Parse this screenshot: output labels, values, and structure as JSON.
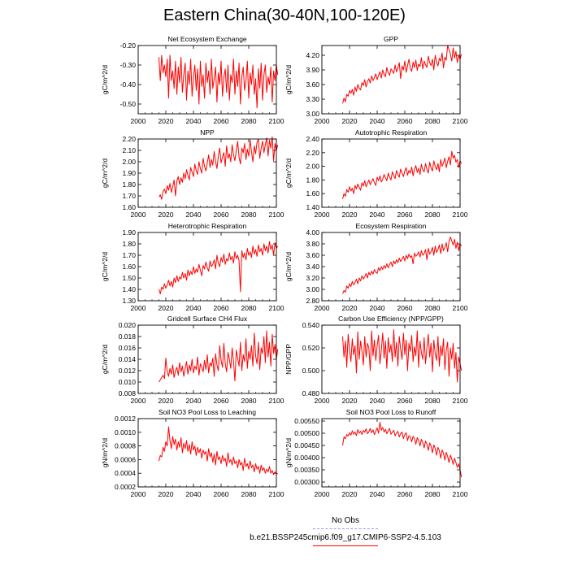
{
  "page_title": "Eastern China(30-40N,100-120E)",
  "colors": {
    "model": "#ff0000",
    "obs": "#9999ff",
    "axis": "#000000"
  },
  "legend": {
    "obs_label": "No Obs",
    "model_label": "b.e21.BSSP245cmip6.f09_g17.CMIP6-SSP2-4.5.103"
  },
  "chart_data": [
    {
      "type": "line",
      "title": "Net Ecosystem Exchange",
      "ylabel": "gC/m^2/d",
      "xlim": [
        2000,
        2100
      ],
      "ylim": [
        -0.55,
        -0.2
      ],
      "xticks": [
        2000,
        2020,
        2040,
        2060,
        2080,
        2100
      ],
      "yticks": [
        -0.2,
        -0.3,
        -0.4,
        -0.5
      ],
      "ytick_labels": [
        "-0.20",
        "-0.30",
        "-0.40",
        "-0.50"
      ],
      "x_start": 2015,
      "values": [
        -0.26,
        -0.38,
        -0.25,
        -0.34,
        -0.3,
        -0.36,
        -0.27,
        -0.47,
        -0.25,
        -0.38,
        -0.33,
        -0.42,
        -0.28,
        -0.45,
        -0.31,
        -0.39,
        -0.26,
        -0.44,
        -0.35,
        -0.29,
        -0.48,
        -0.33,
        -0.4,
        -0.27,
        -0.46,
        -0.36,
        -0.3,
        -0.43,
        -0.32,
        -0.5,
        -0.28,
        -0.41,
        -0.35,
        -0.47,
        -0.29,
        -0.39,
        -0.33,
        -0.45,
        -0.27,
        -0.42,
        -0.37,
        -0.31,
        -0.49,
        -0.34,
        -0.4,
        -0.28,
        -0.46,
        -0.36,
        -0.32,
        -0.44,
        -0.3,
        -0.48,
        -0.35,
        -0.39,
        -0.27,
        -0.45,
        -0.33,
        -0.41,
        -0.29,
        -0.5,
        -0.36,
        -0.31,
        -0.43,
        -0.38,
        -0.28,
        -0.47,
        -0.34,
        -0.4,
        -0.3,
        -0.45,
        -0.37,
        -0.52,
        -0.32,
        -0.42,
        -0.29,
        -0.48,
        -0.35,
        -0.3,
        -0.44,
        -0.36,
        -0.4,
        -0.31,
        -0.49,
        -0.33,
        -0.38,
        -0.3,
        -0.35
      ]
    },
    {
      "type": "line",
      "title": "GPP",
      "ylabel": "gC/m^2/d",
      "xlim": [
        2000,
        2100
      ],
      "ylim": [
        3.0,
        4.4
      ],
      "xticks": [
        2000,
        2020,
        2040,
        2060,
        2080,
        2100
      ],
      "yticks": [
        3.0,
        3.3,
        3.6,
        3.9,
        4.2
      ],
      "ytick_labels": [
        "3.00",
        "3.30",
        "3.60",
        "3.90",
        "4.20"
      ],
      "x_start": 2015,
      "values": [
        3.21,
        3.32,
        3.25,
        3.4,
        3.36,
        3.48,
        3.42,
        3.5,
        3.38,
        3.55,
        3.46,
        3.6,
        3.52,
        3.49,
        3.64,
        3.58,
        3.7,
        3.55,
        3.66,
        3.72,
        3.63,
        3.78,
        3.68,
        3.74,
        3.82,
        3.7,
        3.79,
        3.86,
        3.73,
        3.9,
        3.81,
        3.76,
        3.95,
        3.84,
        3.79,
        3.92,
        3.88,
        3.83,
        4.0,
        3.86,
        3.94,
        4.05,
        3.72,
        3.98,
        3.9,
        4.08,
        3.85,
        3.99,
        4.12,
        3.93,
        3.87,
        4.06,
        3.95,
        4.1,
        3.89,
        4.02,
        3.97,
        4.15,
        3.92,
        4.08,
        4.01,
        3.95,
        4.18,
        4.05,
        3.99,
        4.12,
        3.9,
        4.2,
        4.06,
        3.98,
        4.14,
        4.08,
        4.25,
        3.94,
        4.16,
        4.1,
        4.4,
        4.32,
        4.22,
        4.08,
        4.35,
        4.14,
        4.28,
        4.05,
        4.2,
        4.12,
        4.22
      ]
    },
    {
      "type": "line",
      "title": "NPP",
      "ylabel": "gC/m^2/d",
      "xlim": [
        2000,
        2100
      ],
      "ylim": [
        1.6,
        2.2
      ],
      "xticks": [
        2000,
        2020,
        2040,
        2060,
        2080,
        2100
      ],
      "yticks": [
        1.6,
        1.7,
        1.8,
        1.9,
        2.0,
        2.1,
        2.2
      ],
      "ytick_labels": [
        "1.60",
        "1.70",
        "1.80",
        "1.90",
        "2.00",
        "2.10",
        "2.20"
      ],
      "x_start": 2015,
      "values": [
        1.69,
        1.71,
        1.67,
        1.74,
        1.76,
        1.72,
        1.79,
        1.75,
        1.81,
        1.73,
        1.78,
        1.84,
        1.7,
        1.83,
        1.87,
        1.8,
        1.86,
        1.82,
        1.9,
        1.85,
        1.93,
        1.88,
        1.84,
        1.95,
        1.91,
        1.87,
        1.98,
        1.92,
        1.89,
        2.0,
        1.94,
        1.9,
        2.03,
        1.96,
        1.92,
        1.99,
        2.06,
        1.95,
        2.02,
        1.97,
        2.09,
        2.0,
        1.94,
        2.05,
        2.12,
        1.99,
        2.04,
        2.08,
        1.96,
        2.14,
        2.03,
        2.07,
        2.0,
        2.15,
        2.06,
        2.01,
        2.1,
        2.18,
        2.04,
        1.98,
        2.12,
        2.08,
        2.16,
        2.02,
        2.11,
        2.05,
        2.19,
        2.09,
        2.0,
        2.14,
        2.07,
        2.17,
        2.2,
        2.03,
        2.12,
        2.18,
        2.08,
        2.15,
        2.21,
        2.05,
        2.19,
        2.12,
        2.22,
        2.01,
        2.16,
        2.1,
        2.15
      ]
    },
    {
      "type": "line",
      "title": "Autotrophic Respiration",
      "ylabel": "gC/m^2/d",
      "xlim": [
        2000,
        2100
      ],
      "ylim": [
        1.4,
        2.4
      ],
      "xticks": [
        2000,
        2020,
        2040,
        2060,
        2080,
        2100
      ],
      "yticks": [
        1.4,
        1.6,
        1.8,
        2.0,
        2.2,
        2.4
      ],
      "ytick_labels": [
        "1.40",
        "1.60",
        "1.80",
        "2.00",
        "2.20",
        "2.40"
      ],
      "x_start": 2015,
      "values": [
        1.52,
        1.6,
        1.56,
        1.66,
        1.62,
        1.7,
        1.64,
        1.68,
        1.6,
        1.72,
        1.67,
        1.74,
        1.69,
        1.65,
        1.76,
        1.71,
        1.79,
        1.7,
        1.75,
        1.8,
        1.73,
        1.78,
        1.82,
        1.76,
        1.72,
        1.84,
        1.79,
        1.86,
        1.77,
        1.81,
        1.88,
        1.83,
        1.79,
        1.9,
        1.84,
        1.8,
        1.92,
        1.86,
        1.82,
        1.94,
        1.88,
        1.84,
        1.96,
        1.9,
        1.85,
        1.93,
        1.98,
        1.87,
        1.94,
        1.9,
        1.99,
        1.86,
        1.96,
        2.01,
        1.91,
        1.97,
        1.88,
        2.03,
        1.95,
        1.92,
        2.04,
        1.96,
        1.9,
        2.06,
        1.98,
        1.93,
        2.08,
        2.0,
        1.95,
        2.04,
        1.92,
        2.1,
        2.0,
        2.05,
        2.12,
        1.98,
        2.07,
        2.14,
        2.02,
        2.22,
        2.12,
        2.16,
        2.06,
        2.1,
        1.98,
        2.08,
        2.04
      ]
    },
    {
      "type": "line",
      "title": "Heterotrophic Respiration",
      "ylabel": "gC/m^2/d",
      "xlim": [
        2000,
        2100
      ],
      "ylim": [
        1.3,
        1.9
      ],
      "xticks": [
        2000,
        2020,
        2040,
        2060,
        2080,
        2100
      ],
      "yticks": [
        1.3,
        1.4,
        1.5,
        1.6,
        1.7,
        1.8,
        1.9
      ],
      "ytick_labels": [
        "1.30",
        "1.40",
        "1.50",
        "1.60",
        "1.70",
        "1.80",
        "1.90"
      ],
      "x_start": 2015,
      "values": [
        1.4,
        1.36,
        1.42,
        1.4,
        1.45,
        1.41,
        1.44,
        1.48,
        1.43,
        1.47,
        1.42,
        1.5,
        1.46,
        1.52,
        1.47,
        1.51,
        1.49,
        1.55,
        1.5,
        1.54,
        1.48,
        1.57,
        1.52,
        1.56,
        1.53,
        1.6,
        1.54,
        1.58,
        1.55,
        1.62,
        1.57,
        1.52,
        1.61,
        1.58,
        1.64,
        1.59,
        1.56,
        1.65,
        1.6,
        1.62,
        1.66,
        1.58,
        1.7,
        1.63,
        1.6,
        1.68,
        1.64,
        1.71,
        1.62,
        1.67,
        1.65,
        1.72,
        1.66,
        1.69,
        1.63,
        1.73,
        1.67,
        1.7,
        1.65,
        1.38,
        1.74,
        1.68,
        1.72,
        1.66,
        1.76,
        1.7,
        1.73,
        1.68,
        1.78,
        1.71,
        1.75,
        1.69,
        1.79,
        1.73,
        1.76,
        1.7,
        1.8,
        1.74,
        1.78,
        1.72,
        1.82,
        1.75,
        1.79,
        1.7,
        1.81,
        1.76,
        1.78
      ]
    },
    {
      "type": "line",
      "title": "Ecosystem Respiration",
      "ylabel": "gC/m^2/d",
      "xlim": [
        2000,
        2100
      ],
      "ylim": [
        2.8,
        4.0
      ],
      "xticks": [
        2000,
        2020,
        2040,
        2060,
        2080,
        2100
      ],
      "yticks": [
        2.8,
        3.0,
        3.2,
        3.4,
        3.6,
        3.8,
        4.0
      ],
      "ytick_labels": [
        "2.80",
        "3.00",
        "3.20",
        "3.40",
        "3.60",
        "3.80",
        "4.00"
      ],
      "x_start": 2015,
      "values": [
        2.92,
        2.98,
        2.95,
        3.06,
        3.02,
        3.1,
        3.05,
        3.14,
        3.08,
        3.12,
        3.18,
        3.1,
        3.2,
        3.15,
        3.24,
        3.18,
        3.22,
        3.28,
        3.2,
        3.3,
        3.25,
        3.32,
        3.27,
        3.35,
        3.3,
        3.28,
        3.38,
        3.33,
        3.4,
        3.35,
        3.42,
        3.37,
        3.45,
        3.38,
        3.44,
        3.48,
        3.4,
        3.5,
        3.45,
        3.52,
        3.47,
        3.55,
        3.49,
        3.53,
        3.58,
        3.5,
        3.6,
        3.54,
        3.62,
        3.56,
        3.59,
        3.45,
        3.64,
        3.58,
        3.61,
        3.66,
        3.57,
        3.68,
        3.6,
        3.63,
        3.7,
        3.52,
        3.72,
        3.62,
        3.66,
        3.74,
        3.6,
        3.76,
        3.65,
        3.7,
        3.78,
        3.63,
        3.8,
        3.68,
        3.74,
        3.82,
        3.66,
        3.84,
        3.92,
        3.85,
        3.78,
        3.88,
        3.72,
        3.83,
        3.68,
        3.8,
        3.76
      ]
    },
    {
      "type": "line",
      "title": "Gridcell Surface CH4 Flux",
      "ylabel": "gC/m^2/d",
      "xlim": [
        2000,
        2100
      ],
      "ylim": [
        0.008,
        0.02
      ],
      "xticks": [
        2000,
        2020,
        2040,
        2060,
        2080,
        2100
      ],
      "yticks": [
        0.008,
        0.01,
        0.012,
        0.014,
        0.016,
        0.018,
        0.02
      ],
      "ytick_labels": [
        "0.008",
        "0.010",
        "0.012",
        "0.014",
        "0.016",
        "0.018",
        "0.020"
      ],
      "x_start": 2015,
      "values": [
        0.01,
        0.0104,
        0.0108,
        0.0112,
        0.0106,
        0.0142,
        0.0118,
        0.011,
        0.0124,
        0.0114,
        0.013,
        0.0108,
        0.012,
        0.0126,
        0.0112,
        0.0134,
        0.0118,
        0.0128,
        0.011,
        0.0124,
        0.0136,
        0.0114,
        0.013,
        0.012,
        0.014,
        0.0116,
        0.0128,
        0.0122,
        0.0144,
        0.0112,
        0.0132,
        0.0126,
        0.0118,
        0.0138,
        0.0122,
        0.0148,
        0.0116,
        0.0134,
        0.0128,
        0.0142,
        0.011,
        0.015,
        0.013,
        0.012,
        0.0164,
        0.0138,
        0.0126,
        0.0168,
        0.0132,
        0.0118,
        0.0152,
        0.014,
        0.0124,
        0.016,
        0.0136,
        0.0102,
        0.0156,
        0.0142,
        0.0128,
        0.017,
        0.012,
        0.0148,
        0.0136,
        0.0176,
        0.0124,
        0.0154,
        0.014,
        0.0164,
        0.0128,
        0.0186,
        0.0146,
        0.0132,
        0.017,
        0.0122,
        0.016,
        0.015,
        0.018,
        0.0134,
        0.019,
        0.0144,
        0.017,
        0.0128,
        0.0184,
        0.015,
        0.0166,
        0.014,
        0.0158
      ]
    },
    {
      "type": "line",
      "title": "Carbon Use Efficiency (NPP/GPP)",
      "ylabel": "NPP/GPP",
      "xlim": [
        2000,
        2100
      ],
      "ylim": [
        0.48,
        0.54
      ],
      "xticks": [
        2000,
        2020,
        2040,
        2060,
        2080,
        2100
      ],
      "yticks": [
        0.48,
        0.5,
        0.52,
        0.54
      ],
      "ytick_labels": [
        "0.480",
        "0.500",
        "0.520",
        "0.540"
      ],
      "x_start": 2015,
      "values": [
        0.53,
        0.512,
        0.526,
        0.503,
        0.532,
        0.518,
        0.508,
        0.528,
        0.514,
        0.522,
        0.498,
        0.534,
        0.51,
        0.526,
        0.517,
        0.505,
        0.53,
        0.512,
        0.524,
        0.52,
        0.5,
        0.535,
        0.513,
        0.527,
        0.509,
        0.522,
        0.531,
        0.506,
        0.518,
        0.533,
        0.511,
        0.526,
        0.502,
        0.529,
        0.516,
        0.523,
        0.508,
        0.536,
        0.512,
        0.525,
        0.504,
        0.53,
        0.519,
        0.51,
        0.533,
        0.514,
        0.527,
        0.5,
        0.524,
        0.517,
        0.531,
        0.508,
        0.521,
        0.513,
        0.535,
        0.503,
        0.526,
        0.516,
        0.51,
        0.529,
        0.506,
        0.52,
        0.532,
        0.512,
        0.524,
        0.499,
        0.527,
        0.515,
        0.509,
        0.53,
        0.504,
        0.522,
        0.513,
        0.528,
        0.501,
        0.518,
        0.525,
        0.495,
        0.52,
        0.51,
        0.524,
        0.502,
        0.516,
        0.49,
        0.512,
        0.506,
        0.5
      ]
    },
    {
      "type": "line",
      "title": "Soil NO3 Pool Loss to Leaching",
      "ylabel": "gN/m^2/d",
      "xlim": [
        2000,
        2100
      ],
      "ylim": [
        0.0002,
        0.0012
      ],
      "xticks": [
        2000,
        2020,
        2040,
        2060,
        2080,
        2100
      ],
      "yticks": [
        0.0002,
        0.0004,
        0.0006,
        0.0008,
        0.001,
        0.0012
      ],
      "ytick_labels": [
        "0.0002",
        "0.0004",
        "0.0006",
        "0.0008",
        "0.0010",
        "0.0012"
      ],
      "x_start": 2015,
      "values": [
        0.00058,
        0.00066,
        0.00064,
        0.00078,
        0.00072,
        0.00086,
        0.0008,
        0.00108,
        0.00088,
        0.00076,
        0.00094,
        0.00082,
        0.0009,
        0.00074,
        0.00086,
        0.00078,
        0.00092,
        0.0007,
        0.00084,
        0.00076,
        0.00088,
        0.00072,
        0.00082,
        0.00068,
        0.00086,
        0.00074,
        0.0008,
        0.00066,
        0.00078,
        0.0007,
        0.00076,
        0.00062,
        0.00074,
        0.00068,
        0.00072,
        0.00058,
        0.00076,
        0.00064,
        0.0007,
        0.00056,
        0.00068,
        0.00052,
        0.00072,
        0.0006,
        0.00064,
        0.00054,
        0.00066,
        0.00058,
        0.00062,
        0.0005,
        0.0007,
        0.00056,
        0.0006,
        0.00052,
        0.00064,
        0.00054,
        0.00058,
        0.00048,
        0.0006,
        0.00052,
        0.00056,
        0.00044,
        0.00062,
        0.0005,
        0.00054,
        0.00046,
        0.00058,
        0.00048,
        0.00052,
        0.00042,
        0.00054,
        0.00046,
        0.0005,
        0.0004,
        0.00052,
        0.00044,
        0.00048,
        0.0004,
        0.00046,
        0.00042,
        0.0005,
        0.0004,
        0.00044,
        0.00038,
        0.00042,
        0.0004,
        0.00039
      ]
    },
    {
      "type": "line",
      "title": "Soil NO3 Pool Loss to Runoff",
      "ylabel": "gN/m^2/d",
      "xlim": [
        2000,
        2100
      ],
      "ylim": [
        0.0028,
        0.0056
      ],
      "xticks": [
        2000,
        2020,
        2040,
        2060,
        2080,
        2100
      ],
      "yticks": [
        0.003,
        0.0035,
        0.004,
        0.0045,
        0.005,
        0.0055
      ],
      "ytick_labels": [
        "0.00300",
        "0.00350",
        "0.00400",
        "0.00450",
        "0.00500",
        "0.00550"
      ],
      "x_start": 2015,
      "values": [
        0.0045,
        0.00485,
        0.00478,
        0.00495,
        0.00488,
        0.00502,
        0.00492,
        0.0051,
        0.00496,
        0.00505,
        0.0049,
        0.00515,
        0.005,
        0.00508,
        0.00495,
        0.00512,
        0.00504,
        0.00518,
        0.00498,
        0.00506,
        0.0052,
        0.00502,
        0.00514,
        0.00494,
        0.00508,
        0.00522,
        0.005,
        0.00545,
        0.00512,
        0.00524,
        0.00505,
        0.00516,
        0.00498,
        0.0051,
        0.0052,
        0.00496,
        0.00504,
        0.00512,
        0.0049,
        0.005,
        0.00508,
        0.00485,
        0.00498,
        0.00505,
        0.00478,
        0.00495,
        0.00502,
        0.0047,
        0.0049,
        0.00484,
        0.00465,
        0.00488,
        0.00478,
        0.00455,
        0.00482,
        0.0047,
        0.00448,
        0.00475,
        0.00462,
        0.0044,
        0.00468,
        0.00455,
        0.0043,
        0.0046,
        0.00448,
        0.0042,
        0.00452,
        0.00438,
        0.0041,
        0.00442,
        0.00428,
        0.00398,
        0.00432,
        0.00418,
        0.0039,
        0.00422,
        0.00405,
        0.0038,
        0.0041,
        0.00395,
        0.00372,
        0.00398,
        0.0038,
        0.0036,
        0.00375,
        0.0035,
        0.0032
      ]
    }
  ]
}
